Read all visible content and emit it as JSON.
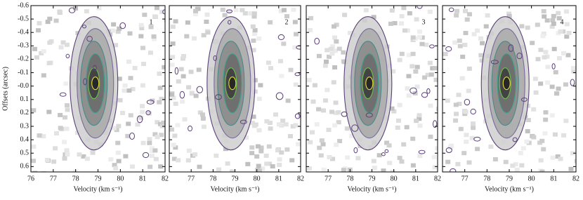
{
  "chart_data": [
    {
      "type": "heatmap",
      "label": "1",
      "xlabel": "Velocity (km s⁻¹)",
      "ylabel": "Offsets (arcsec)",
      "xlim": [
        76,
        82
      ],
      "xticks": [
        76,
        77,
        78,
        79,
        80,
        81,
        82
      ],
      "ylim": [
        -0.6,
        0.64
      ],
      "yinvert": true,
      "yticks": [
        -0.6,
        -0.5,
        -0.4,
        -0.3,
        -0.2,
        -0.1,
        {
          "value": 0,
          "label": "-0.0"
        },
        0.1,
        0.2,
        0.3,
        0.4,
        0.5,
        0.6
      ],
      "ytick_labels": true
    },
    {
      "type": "heatmap",
      "label": "2",
      "xlabel": "Velocity (km s⁻¹)",
      "xlim": [
        76,
        82
      ],
      "xticks": [
        77,
        78,
        79,
        80,
        81,
        82
      ],
      "ylim": [
        -0.6,
        0.64
      ],
      "yinvert": true,
      "yticks": [
        -0.6,
        -0.5,
        -0.4,
        -0.3,
        -0.2,
        -0.1,
        0,
        0.1,
        0.2,
        0.3,
        0.4,
        0.5,
        0.6
      ],
      "ytick_labels": false
    },
    {
      "type": "heatmap",
      "label": "3",
      "xlabel": "Velocity (km s⁻¹)",
      "xlim": [
        76,
        82
      ],
      "xticks": [
        77,
        78,
        79,
        80,
        81,
        82
      ],
      "ylim": [
        -0.6,
        0.64
      ],
      "yinvert": true,
      "yticks": [
        -0.6,
        -0.5,
        -0.4,
        -0.3,
        -0.2,
        -0.1,
        0,
        0.1,
        0.2,
        0.3,
        0.4,
        0.5,
        0.6
      ],
      "ytick_labels": false
    },
    {
      "type": "heatmap",
      "label": "4",
      "xlabel": "Velocity (km s⁻¹)",
      "xlim": [
        76,
        82
      ],
      "xticks": [
        77,
        78,
        79,
        80,
        81,
        82
      ],
      "ylim": [
        -0.6,
        0.64
      ],
      "yinvert": true,
      "yticks": [
        -0.6,
        -0.5,
        -0.4,
        -0.3,
        -0.2,
        -0.1,
        0,
        0.1,
        0.2,
        0.3,
        0.4,
        0.5,
        0.6
      ],
      "ytick_labels": false
    }
  ]
}
